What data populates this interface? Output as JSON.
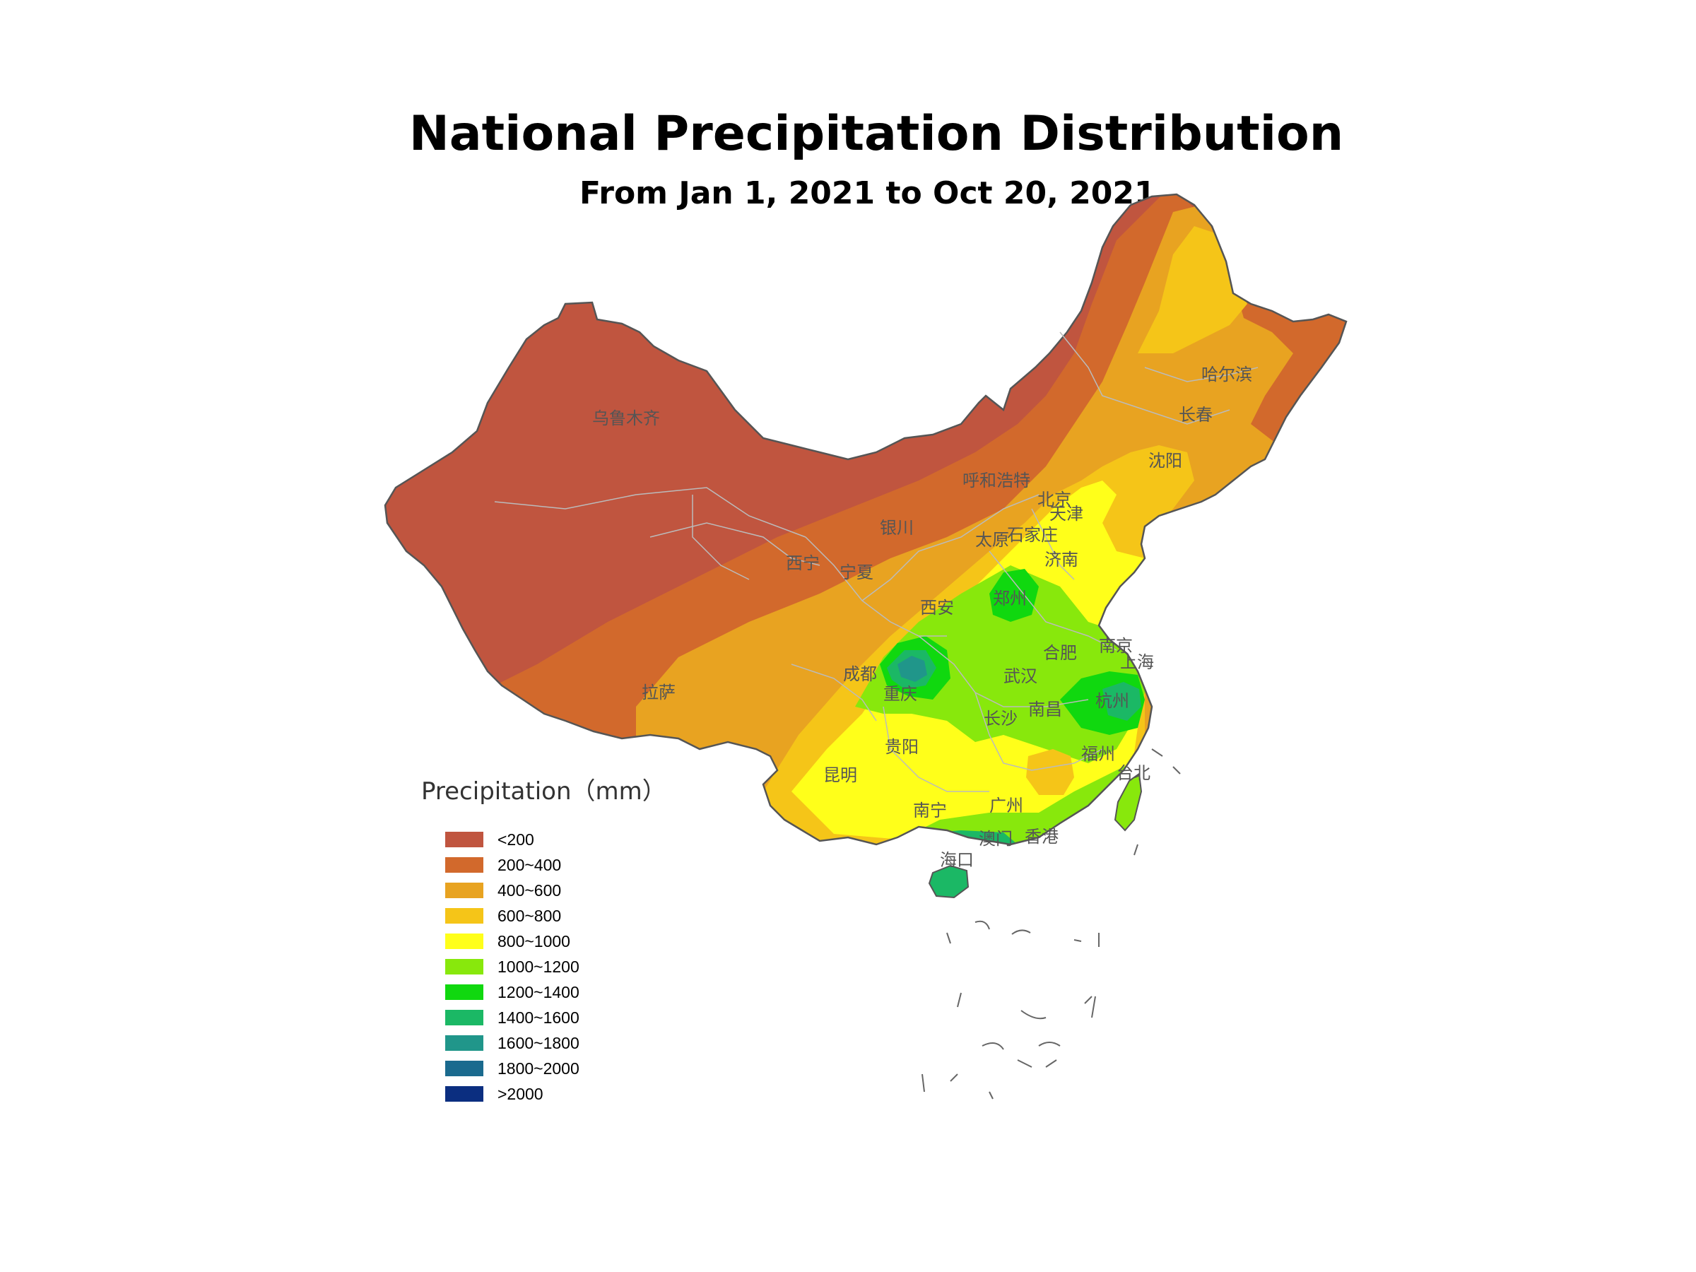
{
  "title": "National Precipitation Distribution",
  "subtitle": "From Jan 1, 2021 to Oct 20, 2021",
  "legend": {
    "title": "Precipitation（mm）",
    "items": [
      {
        "label": "<200",
        "color": "#C0553F"
      },
      {
        "label": "200~400",
        "color": "#D2692C"
      },
      {
        "label": "400~600",
        "color": "#E8A321"
      },
      {
        "label": "600~800",
        "color": "#F5C518"
      },
      {
        "label": "800~1000",
        "color": "#FFFF1A"
      },
      {
        "label": "1000~1200",
        "color": "#88E80C"
      },
      {
        "label": "1200~1400",
        "color": "#10D80F"
      },
      {
        "label": "1400~1600",
        "color": "#1BB865"
      },
      {
        "label": "1600~1800",
        "color": "#20968A"
      },
      {
        "label": "1800~2000",
        "color": "#1A6A8E"
      },
      {
        "label": ">2000",
        "color": "#0B2E80"
      }
    ]
  },
  "cities": {
    "urumqi": "乌鲁木齐",
    "harbin": "哈尔滨",
    "changchun": "长春",
    "shenyang": "沈阳",
    "hohhot": "呼和浩特",
    "beijing": "北京",
    "tianjin": "天津",
    "yinchuan": "银川",
    "taiyuan": "太原",
    "shijiazhuang": "石家庄",
    "xining": "西宁",
    "ningxia": "宁夏",
    "jinan": "济南",
    "zhengzhou": "郑州",
    "xian": "西安",
    "nanjing": "南京",
    "shanghai": "上海",
    "hefei": "合肥",
    "chengdu": "成都",
    "wuhan": "武汉",
    "lhasa": "拉萨",
    "chongqing": "重庆",
    "hangzhou": "杭州",
    "changsha": "长沙",
    "nanchang": "南昌",
    "guiyang": "贵阳",
    "fuzhou": "福州",
    "kunming": "昆明",
    "taipei": "台北",
    "nanning": "南宁",
    "guangzhou": "广州",
    "macau": "澳门",
    "hongkong": "香港",
    "haikou": "海口"
  }
}
